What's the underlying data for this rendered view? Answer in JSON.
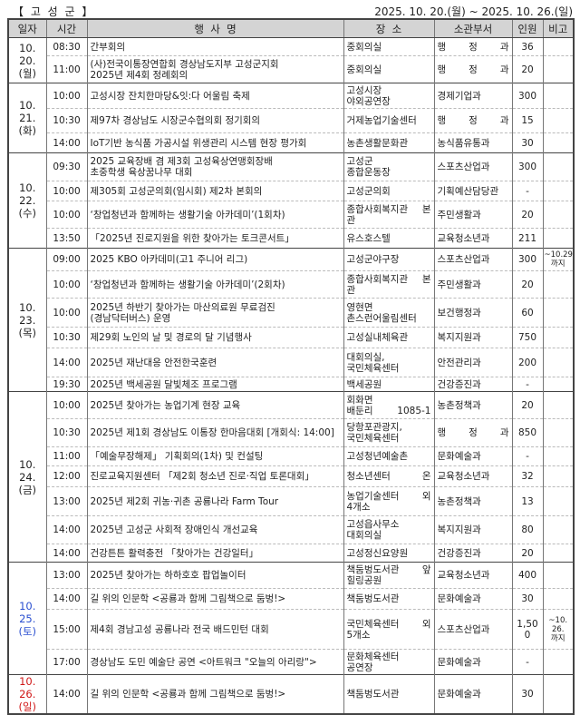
{
  "header": {
    "region": "【 고 성 군 】",
    "period": "2025. 10. 20.(월) ~ 2025. 10. 26.(일)"
  },
  "columns": [
    "일자",
    "시간",
    "행  사  명",
    "장  소",
    "소관부서",
    "인원",
    "비고"
  ],
  "days": [
    {
      "date": "10. 20.",
      "weekday": "(월)",
      "color": "#222222",
      "events": [
        {
          "time": "08:30",
          "title": "간부회의",
          "place": [
            "중회의실"
          ],
          "dept": "행   정   과",
          "count": "36",
          "note": ""
        },
        {
          "time": "11:00",
          "title": "(사)전국이통장연합회 경상남도지부 고성군지회\n2025년 제4회 정례회의",
          "place": [
            "중회의실"
          ],
          "dept": "행   정   과",
          "count": "20",
          "note": ""
        }
      ]
    },
    {
      "date": "10. 21.",
      "weekday": "(화)",
      "color": "#222222",
      "events": [
        {
          "time": "10:00",
          "title": "고성시장 잔치한마당&잇:다 어울림 축제",
          "place": [
            "고성시장",
            "야외공연장"
          ],
          "dept": "경제기업과",
          "count": "300",
          "note": ""
        },
        {
          "time": "10:30",
          "title": "제97차 경상남도 시장군수협의회 정기회의",
          "place": [
            "거제농업기술센터"
          ],
          "dept": "행   정   과",
          "count": "15",
          "note": ""
        },
        {
          "time": "14:00",
          "title": "IoT기반 농식품 가공시설 위생관리 시스템 현장 평가회",
          "place": [
            "농촌생활문화관"
          ],
          "dept": "농식품유통과",
          "count": "30",
          "note": ""
        }
      ]
    },
    {
      "date": "10. 22.",
      "weekday": "(수)",
      "color": "#222222",
      "events": [
        {
          "time": "09:30",
          "title": "2025 교육장배 겸 제3회 고성육상연맹회장배\n초중학생 육상꿈나무 대회",
          "place": [
            "고성군",
            "종합운동장"
          ],
          "dept": "스포츠산업과",
          "count": "300",
          "note": ""
        },
        {
          "time": "10:00",
          "title": "제305회 고성군의회(임시회) 제2차 본회의",
          "place": [
            "고성군의회"
          ],
          "dept": "기획예산담당관",
          "count": "-",
          "note": ""
        },
        {
          "time": "10:00",
          "title": "‘창업청년과 함께하는 생활기술 아카데미’(1회차)",
          "place": [
            "종합사회복지관 본",
            "관"
          ],
          "dept": "주민생활과",
          "count": "20",
          "note": ""
        },
        {
          "time": "13:50",
          "title": "「2025년 진로지원을 위한 찾아가는 토크콘서트」",
          "place": [
            "유스호스텔"
          ],
          "dept": "교육청소년과",
          "count": "211",
          "note": ""
        }
      ]
    },
    {
      "date": "10. 23.",
      "weekday": "(목)",
      "color": "#222222",
      "events": [
        {
          "time": "09:00",
          "title": "2025 KBO 아카데미(고1 주니어 리그)",
          "place": [
            "고성군야구장"
          ],
          "dept": "스포츠산업과",
          "count": "300",
          "note": "~10.29.\n까지"
        },
        {
          "time": "10:00",
          "title": "‘창업청년과 함께하는 생활기술 아카데미’(2회차)",
          "place": [
            "종합사회복지관 본",
            "관"
          ],
          "dept": "주민생활과",
          "count": "20",
          "note": ""
        },
        {
          "time": "10:00",
          "title": "2025년 하반기 찾아가는 마산의료원 무료검진\n(경남닥터버스) 운영",
          "place": [
            "영현면",
            "촌스런어울림센터"
          ],
          "dept": "보건행정과",
          "count": "60",
          "note": ""
        },
        {
          "time": "10:30",
          "title": "제29회 노인의 날 및 경로의 달 기념행사",
          "place": [
            "고성실내체육관"
          ],
          "dept": "복지지원과",
          "count": "750",
          "note": ""
        },
        {
          "time": "14:00",
          "title": "2025년 재난대응 안전한국훈련",
          "place": [
            "대회의실,",
            "국민체육센터"
          ],
          "dept": "안전관리과",
          "count": "200",
          "note": ""
        },
        {
          "time": "19:30",
          "title": "2025년 백세공원 달빛체조 프로그램",
          "place": [
            "백세공원"
          ],
          "dept": "건강증진과",
          "count": "-",
          "note": ""
        }
      ]
    },
    {
      "date": "10. 24.",
      "weekday": "(금)",
      "color": "#222222",
      "events": [
        {
          "time": "10:00",
          "title": "2025년 찾아가는 농업기계 현장 교육",
          "place": [
            "회화면",
            "배둔리 1085-1"
          ],
          "dept": "농촌정책과",
          "count": "20",
          "note": ""
        },
        {
          "time": "10:30",
          "title": "2025년 제1회 경상남도 이통장 한마음대회 [개회식: 14:00]",
          "place": [
            "당항포관광지,",
            "국민체육센터"
          ],
          "dept": "행   정   과",
          "count": "850",
          "note": ""
        },
        {
          "time": "11:00",
          "title": "「예술무장해제」 기획회의(1차) 및 컨설팅",
          "place": [
            "고성청년예술촌"
          ],
          "dept": "문화예술과",
          "count": "-",
          "note": ""
        },
        {
          "time": "12:00",
          "title": "진로교육지원센터 「제2회 청소년 진로·직업 토론대회」",
          "place": [
            "청소년센터 온"
          ],
          "dept": "교육청소년과",
          "count": "32",
          "note": ""
        },
        {
          "time": "13:00",
          "title": "2025년 제2회 귀농·귀촌 공룡나라 Farm Tour",
          "place": [
            "농업기술센터 외",
            "4개소"
          ],
          "dept": "농촌정책과",
          "count": "13",
          "note": ""
        },
        {
          "time": "14:00",
          "title": "2025년 고성군 사회적 장애인식 개선교육",
          "place": [
            "고성읍사무소",
            "대회의실"
          ],
          "dept": "복지지원과",
          "count": "80",
          "note": ""
        },
        {
          "time": "14:00",
          "title": "건강튼튼 활력충전 「찾아가는 건강일터」",
          "place": [
            "고성정신요양원"
          ],
          "dept": "건강증진과",
          "count": "20",
          "note": ""
        }
      ]
    },
    {
      "date": "10. 25.",
      "weekday": "(토)",
      "color": "#2a4fd0",
      "events": [
        {
          "time": "13:00",
          "title": "2025년 찾아가는 하하호호 팝업놀이터",
          "place": [
            "책둠벙도서관 앞",
            "힐링공원"
          ],
          "dept": "교육청소년과",
          "count": "400",
          "note": ""
        },
        {
          "time": "14:00",
          "title": "길 위의 인문학 <공룡과 함께 그림책으로 둠벙!>",
          "place": [
            "책둠벙도서관"
          ],
          "dept": "문화예술과",
          "count": "30",
          "note": ""
        },
        {
          "time": "15:00",
          "title": "제4회 경남고성 공룡나라 전국 배드민턴 대회",
          "place": [
            "국민체육센터 외",
            "5개소"
          ],
          "dept": "스포츠산업과",
          "count": "1,500",
          "note": "~10.\n26.\n까지"
        },
        {
          "time": "17:00",
          "title": "경상남도 도민 예술단 공연 <아트워크 \"오늘의 아리랑\">",
          "place": [
            "문화체육센터",
            "공연장"
          ],
          "dept": "문화예술과",
          "count": "-",
          "note": ""
        }
      ]
    },
    {
      "date": "10. 26.",
      "weekday": "(일)",
      "color": "#d01818",
      "events": [
        {
          "time": "14:00",
          "title": "길 위의 인문학 <공룡과 함께 그림책으로 둠벙!>",
          "place": [
            "책둠벙도서관"
          ],
          "dept": "문화예술과",
          "count": "30",
          "note": ""
        }
      ]
    }
  ]
}
